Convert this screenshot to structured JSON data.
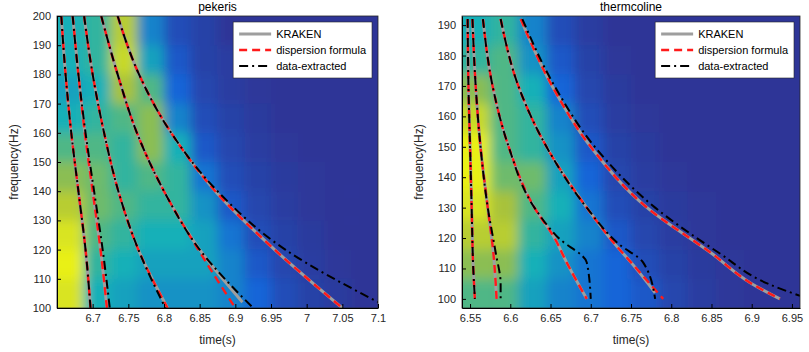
{
  "chart_data": [
    {
      "type": "line",
      "title": "pekeris",
      "x_label": "time(s)",
      "y_label": "frequency(Hz)",
      "xlim": [
        6.65,
        7.1
      ],
      "ylim": [
        100,
        200
      ],
      "xticks": [
        6.7,
        6.75,
        6.8,
        6.85,
        6.9,
        6.95,
        7,
        7.05,
        7.1
      ],
      "yticks": [
        100,
        110,
        120,
        130,
        140,
        150,
        160,
        170,
        180,
        190,
        200
      ],
      "legend": "northeast",
      "heatmap": {
        "zlim": [
          0,
          1
        ],
        "z": [
          [
            0.5,
            0.55,
            0.8,
            0.35,
            0.15,
            0.1,
            0.05,
            0.05,
            0.05,
            0.05,
            0.05,
            0.05
          ],
          [
            0.5,
            0.55,
            0.85,
            0.45,
            0.2,
            0.1,
            0.08,
            0.05,
            0.05,
            0.05,
            0.05,
            0.05
          ],
          [
            0.45,
            0.5,
            0.75,
            0.6,
            0.25,
            0.12,
            0.08,
            0.06,
            0.05,
            0.05,
            0.05,
            0.05
          ],
          [
            0.5,
            0.55,
            0.6,
            0.7,
            0.35,
            0.15,
            0.1,
            0.07,
            0.05,
            0.05,
            0.05,
            0.05
          ],
          [
            0.6,
            0.6,
            0.55,
            0.7,
            0.5,
            0.2,
            0.12,
            0.08,
            0.06,
            0.05,
            0.05,
            0.05
          ],
          [
            0.7,
            0.65,
            0.55,
            0.6,
            0.55,
            0.3,
            0.15,
            0.1,
            0.07,
            0.06,
            0.05,
            0.05
          ],
          [
            0.8,
            0.65,
            0.6,
            0.55,
            0.55,
            0.4,
            0.2,
            0.12,
            0.08,
            0.06,
            0.05,
            0.05
          ],
          [
            0.9,
            0.6,
            0.55,
            0.5,
            0.5,
            0.45,
            0.3,
            0.15,
            0.1,
            0.07,
            0.05,
            0.05
          ],
          [
            0.95,
            0.55,
            0.5,
            0.45,
            0.45,
            0.45,
            0.35,
            0.2,
            0.12,
            0.08,
            0.06,
            0.05
          ],
          [
            0.9,
            0.5,
            0.45,
            0.4,
            0.4,
            0.4,
            0.35,
            0.25,
            0.15,
            0.1,
            0.07,
            0.05
          ]
        ]
      },
      "series": [
        {
          "name": "KRAKEN",
          "color": "#9e9e9e",
          "line_style": "solid",
          "modes": [
            {
              "x": [
                6.656,
                6.662,
                6.67,
                6.68,
                6.69,
                6.697
              ],
              "y": [
                200,
                180,
                160,
                140,
                120,
                100
              ]
            },
            {
              "x": [
                6.672,
                6.68,
                6.689,
                6.7,
                6.711,
                6.72
              ],
              "y": [
                200,
                180,
                160,
                140,
                120,
                100
              ]
            },
            {
              "x": [
                6.688,
                6.7,
                6.716,
                6.736,
                6.764,
                6.805
              ],
              "y": [
                200,
                180,
                160,
                140,
                120,
                100
              ]
            },
            {
              "x": [
                6.712,
                6.735,
                6.762,
                6.8,
                6.85,
                6.91
              ],
              "y": [
                200,
                180,
                160,
                140,
                120,
                102
              ]
            },
            {
              "x": [
                6.735,
                6.765,
                6.81,
                6.872,
                6.955,
                7.05
              ],
              "y": [
                200,
                180,
                160,
                140,
                120,
                100
              ]
            }
          ]
        },
        {
          "name": "dispersion formula",
          "color": "#ff1a1a",
          "line_style": "dashed",
          "modes": [
            {
              "x": [
                6.656,
                6.662,
                6.67,
                6.68,
                6.69,
                6.697
              ],
              "y": [
                200,
                180,
                160,
                140,
                120,
                100
              ]
            },
            {
              "x": [
                6.672,
                6.68,
                6.689,
                6.7,
                6.711,
                6.72
              ],
              "y": [
                200,
                180,
                160,
                140,
                120,
                100
              ]
            },
            {
              "x": [
                6.688,
                6.7,
                6.716,
                6.736,
                6.764,
                6.805
              ],
              "y": [
                200,
                180,
                160,
                140,
                120,
                100
              ]
            },
            {
              "x": [
                6.712,
                6.735,
                6.762,
                6.8,
                6.848,
                6.9
              ],
              "y": [
                200,
                180,
                160,
                140,
                120,
                100
              ]
            },
            {
              "x": [
                6.735,
                6.765,
                6.81,
                6.872,
                6.955,
                7.05
              ],
              "y": [
                200,
                180,
                160,
                140,
                120,
                100
              ]
            }
          ]
        },
        {
          "name": "data-extracted",
          "color": "#000000",
          "line_style": "dashdot",
          "modes": [
            {
              "x": [
                6.656,
                6.662,
                6.67,
                6.68,
                6.69,
                6.697
              ],
              "y": [
                200,
                180,
                160,
                140,
                120,
                100
              ]
            },
            {
              "x": [
                6.672,
                6.68,
                6.69,
                6.702,
                6.714,
                6.724
              ],
              "y": [
                200,
                180,
                160,
                140,
                120,
                100
              ]
            },
            {
              "x": [
                6.688,
                6.7,
                6.716,
                6.736,
                6.764,
                6.802
              ],
              "y": [
                200,
                180,
                160,
                140,
                120,
                100
              ]
            },
            {
              "x": [
                6.712,
                6.735,
                6.762,
                6.8,
                6.85,
                6.925
              ],
              "y": [
                200,
                180,
                160,
                140,
                120,
                100
              ]
            },
            {
              "x": [
                6.735,
                6.765,
                6.81,
                6.875,
                6.97,
                7.1
              ],
              "y": [
                200,
                180,
                160,
                140,
                120,
                102
              ]
            }
          ]
        }
      ]
    },
    {
      "type": "line",
      "title": "thermcoline",
      "x_label": "time(s)",
      "y_label": "frequency(Hz)",
      "xlim": [
        6.54,
        6.96
      ],
      "ylim": [
        97,
        193
      ],
      "xticks": [
        6.55,
        6.6,
        6.65,
        6.7,
        6.75,
        6.8,
        6.85,
        6.9,
        6.95
      ],
      "yticks": [
        100,
        110,
        120,
        130,
        140,
        150,
        160,
        170,
        180,
        190
      ],
      "legend": "northeast",
      "heatmap": {
        "zlim": [
          0,
          1
        ],
        "z": [
          [
            0.5,
            0.55,
            0.35,
            0.15,
            0.08,
            0.05,
            0.05,
            0.05,
            0.05,
            0.05,
            0.05,
            0.05
          ],
          [
            0.55,
            0.6,
            0.4,
            0.2,
            0.1,
            0.06,
            0.05,
            0.05,
            0.05,
            0.05,
            0.05,
            0.05
          ],
          [
            0.7,
            0.6,
            0.5,
            0.25,
            0.12,
            0.07,
            0.05,
            0.05,
            0.05,
            0.05,
            0.05,
            0.05
          ],
          [
            0.85,
            0.6,
            0.55,
            0.35,
            0.15,
            0.08,
            0.06,
            0.05,
            0.05,
            0.05,
            0.05,
            0.05
          ],
          [
            0.95,
            0.6,
            0.55,
            0.4,
            0.2,
            0.1,
            0.07,
            0.05,
            0.05,
            0.05,
            0.05,
            0.05
          ],
          [
            0.95,
            0.65,
            0.65,
            0.45,
            0.25,
            0.12,
            0.08,
            0.06,
            0.05,
            0.05,
            0.05,
            0.05
          ],
          [
            0.9,
            0.75,
            0.6,
            0.5,
            0.3,
            0.15,
            0.1,
            0.07,
            0.06,
            0.05,
            0.05,
            0.05
          ],
          [
            0.8,
            0.8,
            0.55,
            0.45,
            0.35,
            0.2,
            0.12,
            0.08,
            0.06,
            0.05,
            0.05,
            0.05
          ],
          [
            0.7,
            0.7,
            0.5,
            0.4,
            0.3,
            0.25,
            0.15,
            0.1,
            0.07,
            0.06,
            0.05,
            0.05
          ],
          [
            0.6,
            0.6,
            0.45,
            0.35,
            0.3,
            0.25,
            0.2,
            0.12,
            0.08,
            0.06,
            0.05,
            0.05
          ]
        ]
      },
      "series": [
        {
          "name": "KRAKEN",
          "color": "#9e9e9e",
          "line_style": "solid",
          "modes": [
            {
              "x": [
                6.547,
                6.548,
                6.55,
                6.552,
                6.554,
                6.556
              ],
              "y": [
                192,
                170,
                150,
                130,
                110,
                100
              ]
            },
            {
              "x": [
                6.553,
                6.557,
                6.563,
                6.572,
                6.579,
                6.583
              ],
              "y": [
                192,
                170,
                150,
                130,
                115,
                100
              ]
            },
            {
              "x": [
                6.566,
                6.578,
                6.598,
                6.63,
                6.655,
                6.67,
                6.695
              ],
              "y": [
                192,
                170,
                150,
                130,
                120,
                112,
                100
              ]
            },
            {
              "x": [
                6.588,
                6.61,
                6.645,
                6.695,
                6.73,
                6.75,
                6.78
              ],
              "y": [
                192,
                170,
                150,
                130,
                118,
                112,
                102
              ]
            },
            {
              "x": [
                6.613,
                6.652,
                6.7,
                6.77,
                6.85,
                6.9,
                6.935
              ],
              "y": [
                192,
                170,
                150,
                130,
                115,
                105,
                100
              ]
            }
          ]
        },
        {
          "name": "dispersion formula",
          "color": "#ff1a1a",
          "line_style": "dashed",
          "modes": [
            {
              "x": [
                6.547,
                6.548,
                6.55,
                6.552,
                6.554,
                6.556
              ],
              "y": [
                192,
                170,
                150,
                130,
                110,
                100
              ]
            },
            {
              "x": [
                6.553,
                6.557,
                6.563,
                6.572,
                6.579,
                6.583
              ],
              "y": [
                192,
                170,
                150,
                130,
                115,
                100
              ]
            },
            {
              "x": [
                6.566,
                6.578,
                6.598,
                6.63,
                6.655,
                6.67,
                6.695
              ],
              "y": [
                192,
                170,
                150,
                130,
                120,
                112,
                100
              ]
            },
            {
              "x": [
                6.588,
                6.61,
                6.645,
                6.695,
                6.73,
                6.75,
                6.79
              ],
              "y": [
                192,
                170,
                150,
                130,
                118,
                112,
                100
              ]
            },
            {
              "x": [
                6.613,
                6.652,
                6.7,
                6.77,
                6.85,
                6.9,
                6.935
              ],
              "y": [
                192,
                170,
                150,
                130,
                115,
                105,
                100
              ]
            }
          ]
        },
        {
          "name": "data-extracted",
          "color": "#000000",
          "line_style": "dashdot",
          "modes": [
            {
              "x": [
                6.547,
                6.548,
                6.55,
                6.552,
                6.554,
                6.556
              ],
              "y": [
                192,
                170,
                150,
                130,
                110,
                100
              ]
            },
            {
              "x": [
                6.553,
                6.557,
                6.563,
                6.572,
                6.582,
                6.588,
                6.588
              ],
              "y": [
                192,
                170,
                150,
                130,
                115,
                105,
                100
              ]
            },
            {
              "x": [
                6.566,
                6.578,
                6.598,
                6.63,
                6.66,
                6.695,
                6.7
              ],
              "y": [
                192,
                170,
                150,
                130,
                120,
                112,
                100
              ]
            },
            {
              "x": [
                6.588,
                6.61,
                6.645,
                6.695,
                6.735,
                6.765,
                6.78
              ],
              "y": [
                192,
                170,
                150,
                130,
                118,
                112,
                100
              ]
            },
            {
              "x": [
                6.615,
                6.655,
                6.705,
                6.78,
                6.86,
                6.92,
                6.96
              ],
              "y": [
                192,
                170,
                150,
                130,
                115,
                105,
                101
              ]
            }
          ]
        }
      ]
    }
  ]
}
